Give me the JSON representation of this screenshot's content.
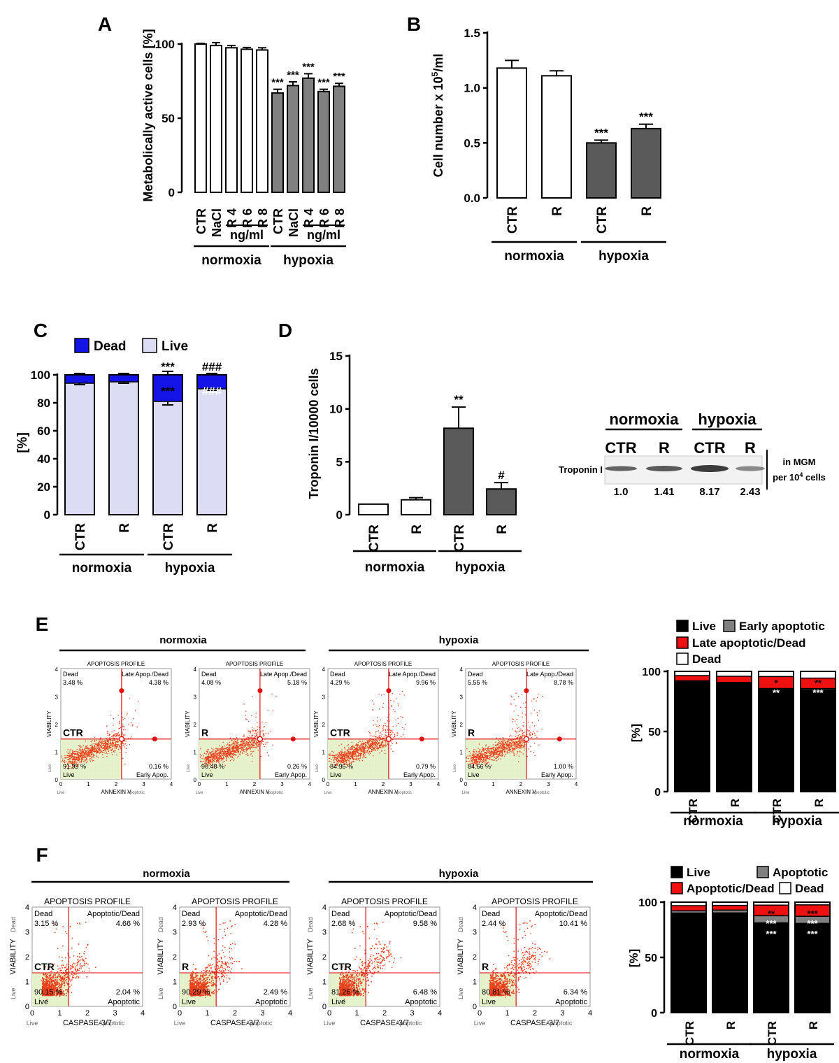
{
  "panel_letters": [
    "A",
    "B",
    "C",
    "D",
    "E",
    "F"
  ],
  "chart_data": [
    {
      "id": "A",
      "type": "bar",
      "ylabel": "Metabolically active cells [%]",
      "ylim": [
        0,
        100
      ],
      "yticks": [
        "0",
        "50",
        "100"
      ],
      "categories": [
        "CTR",
        "NaCl",
        "R 4",
        "R 6",
        "R 8",
        "CTR",
        "NaCl",
        "R 4",
        "R 6",
        "R 8"
      ],
      "values": [
        100,
        99,
        97.5,
        96.5,
        96,
        67,
        72,
        77,
        68,
        71.5
      ],
      "errors": [
        0.5,
        2,
        1.5,
        1.2,
        1.5,
        2.5,
        2.5,
        3,
        1.5,
        2
      ],
      "fill": [
        "#ffffff",
        "#ffffff",
        "#ffffff",
        "#ffffff",
        "#ffffff",
        "#808080",
        "#808080",
        "#808080",
        "#808080",
        "#808080"
      ],
      "annotations": [
        "",
        "",
        "",
        "",
        "",
        "***",
        "***",
        "***",
        "***",
        "***"
      ],
      "sublabels": [
        {
          "text": "ng/ml",
          "from": 2,
          "to": 4
        },
        {
          "text": "ng/ml",
          "from": 7,
          "to": 9
        }
      ],
      "groups": [
        {
          "text": "normoxia",
          "from": 0,
          "to": 4
        },
        {
          "text": "hypoxia",
          "from": 5,
          "to": 9
        }
      ]
    },
    {
      "id": "B",
      "type": "bar",
      "ylabel": "Cell number x 10",
      "ylabel_sup": "5",
      "ylabel_suffix": "/ml",
      "ylim": [
        0,
        1.5
      ],
      "yticks": [
        "0.0",
        "0.5",
        "1.0",
        "1.5"
      ],
      "categories": [
        "CTR",
        "R",
        "CTR",
        "R"
      ],
      "values": [
        1.18,
        1.11,
        0.5,
        0.63
      ],
      "errors": [
        0.07,
        0.045,
        0.025,
        0.04
      ],
      "fill": [
        "#ffffff",
        "#ffffff",
        "#5a5a5a",
        "#5a5a5a"
      ],
      "annotations": [
        "",
        "",
        "***",
        "***"
      ],
      "groups": [
        {
          "text": "normoxia",
          "from": 0,
          "to": 1
        },
        {
          "text": "hypoxia",
          "from": 2,
          "to": 3
        }
      ]
    },
    {
      "id": "C",
      "type": "bar",
      "stacked": true,
      "ylabel": "[%]",
      "ylim": [
        0,
        100
      ],
      "yticks": [
        "0",
        "20",
        "40",
        "60",
        "80",
        "100"
      ],
      "categories": [
        "CTR",
        "R",
        "CTR",
        "R"
      ],
      "series": [
        {
          "name": "Live",
          "color": "#dcdcf5",
          "values": [
            94,
            95,
            81,
            90
          ]
        },
        {
          "name": "Dead",
          "color": "#1414e6",
          "values": [
            6,
            5,
            19,
            10
          ]
        }
      ],
      "errors": [
        1,
        1,
        2.5,
        1
      ],
      "annotations_top": [
        "",
        "",
        "***",
        "###"
      ],
      "annotations_inner": [
        "",
        "",
        "***",
        "###"
      ],
      "groups": [
        {
          "text": "normoxia",
          "from": 0,
          "to": 1
        },
        {
          "text": "hypoxia",
          "from": 2,
          "to": 3
        }
      ]
    },
    {
      "id": "D",
      "type": "bar",
      "ylabel": "Troponin I/10000 cells",
      "ylim": [
        0,
        15
      ],
      "yticks": [
        "0",
        "5",
        "10",
        "15"
      ],
      "categories": [
        "CTR",
        "R",
        "CTR",
        "R"
      ],
      "values": [
        1.0,
        1.41,
        8.17,
        2.43
      ],
      "errors": [
        0,
        0.2,
        2.0,
        0.6
      ],
      "fill": [
        "#ffffff",
        "#ffffff",
        "#5a5a5a",
        "#5a5a5a"
      ],
      "annotations": [
        "",
        "",
        "**",
        "#"
      ],
      "groups": [
        {
          "text": "normoxia",
          "from": 0,
          "to": 1
        },
        {
          "text": "hypoxia",
          "from": 2,
          "to": 3
        }
      ]
    },
    {
      "id": "E",
      "type": "bar",
      "stacked": true,
      "ylabel": "[%]",
      "ylim": [
        0,
        100
      ],
      "yticks": [
        "0",
        "50",
        "100"
      ],
      "categories": [
        "CTR",
        "R",
        "CTR",
        "R"
      ],
      "series": [
        {
          "name": "Live",
          "color": "#000000",
          "values": [
            91.99,
            90.48,
            84.96,
            84.66
          ]
        },
        {
          "name": "Early apoptotic",
          "color": "#808080",
          "values": [
            0.16,
            0.26,
            0.79,
            1.0
          ]
        },
        {
          "name": "Late apoptotic/Dead",
          "color": "#ee1111",
          "values": [
            4.38,
            5.18,
            9.96,
            8.78
          ]
        },
        {
          "name": "Dead",
          "color": "#ffffff",
          "values": [
            3.48,
            4.08,
            4.29,
            5.55
          ]
        }
      ],
      "annotations_red": [
        "",
        "",
        "*",
        "**"
      ],
      "annotations_black": [
        "",
        "",
        "**",
        "***"
      ],
      "groups": [
        {
          "text": "normoxia",
          "from": 0,
          "to": 1
        },
        {
          "text": "hypoxia",
          "from": 2,
          "to": 3
        }
      ]
    },
    {
      "id": "F",
      "type": "bar",
      "stacked": true,
      "ylabel": "[%]",
      "ylim": [
        0,
        100
      ],
      "yticks": [
        "0",
        "50",
        "100"
      ],
      "categories": [
        "CTR",
        "R",
        "CTR",
        "R"
      ],
      "series": [
        {
          "name": "Live",
          "color": "#000000",
          "values": [
            90.15,
            90.29,
            81.26,
            80.81
          ]
        },
        {
          "name": "Apoptotic",
          "color": "#808080",
          "values": [
            2.04,
            2.49,
            6.48,
            6.34
          ]
        },
        {
          "name": "Apoptotic/Dead",
          "color": "#ee1111",
          "values": [
            4.66,
            4.28,
            9.58,
            10.41
          ]
        },
        {
          "name": "Dead",
          "color": "#ffffff",
          "values": [
            3.15,
            2.93,
            2.68,
            2.44
          ]
        }
      ],
      "annotations_red": [
        "",
        "",
        "**",
        "***"
      ],
      "annotations_gray": [
        "",
        "",
        "***",
        "***"
      ],
      "annotations_black": [
        "",
        "",
        "***",
        "***"
      ],
      "groups": [
        {
          "text": "normoxia",
          "from": 0,
          "to": 1
        },
        {
          "text": "hypoxia",
          "from": 2,
          "to": 3
        }
      ]
    }
  ],
  "western_blot": {
    "groups": [
      "normoxia",
      "hypoxia"
    ],
    "lanes": [
      "CTR",
      "R",
      "CTR",
      "R"
    ],
    "row_label": "Troponin I",
    "values": [
      "1.0",
      "1.41",
      "8.17",
      "2.43"
    ],
    "side_label_1": "in MGM",
    "side_label_2": "per 10",
    "side_label_2_sup": "4",
    "side_label_2_suffix": " cells"
  },
  "flow_E": {
    "groups": [
      "normoxia",
      "hypoxia"
    ],
    "title": "APOPTOSIS PROFILE",
    "yaxis": "VIABILITY",
    "xaxis": "ANNEXIN V",
    "x_left_word": "Live",
    "x_right_word": "Apoptotic",
    "y_bottom_word": "Live",
    "q_ul": "Dead",
    "q_ur": "Late Apop./Dead",
    "q_ll": "Live",
    "q_lr": "Early Apop.",
    "ticks": [
      "0",
      "1",
      "2",
      "3",
      "4"
    ],
    "plots": [
      {
        "label": "CTR",
        "dead": "3.48 %",
        "late": "4.38 %",
        "live": "91.99 %",
        "early": "0.16 %"
      },
      {
        "label": "R",
        "dead": "4.08 %",
        "late": "5.18 %",
        "live": "90.48 %",
        "early": "0.26 %"
      },
      {
        "label": "CTR",
        "dead": "4.29 %",
        "late": "9.96 %",
        "live": "84.96 %",
        "early": "0.79 %"
      },
      {
        "label": "R",
        "dead": "5.55 %",
        "late": "8.78 %",
        "live": "84.66 %",
        "early": "1.00 %"
      }
    ]
  },
  "flow_F": {
    "groups": [
      "normoxia",
      "hypoxia"
    ],
    "title": "APOPTOSIS PROFILE",
    "yaxis": "VIABILITY",
    "xaxis": "CASPASE-3/7",
    "x_left_word": "Live",
    "x_right_word": "Apoptotic",
    "y_bottom_word": "Live",
    "y_top_word": "Dead",
    "q_ul": "Dead",
    "q_ur": "Apoptotic/Dead",
    "q_ll": "Live",
    "q_lr": "Apoptotic",
    "ticks": [
      "0",
      "1",
      "2",
      "3",
      "4"
    ],
    "plots": [
      {
        "label": "CTR",
        "dead": "3.15 %",
        "late": "4.66 %",
        "live": "90.15 %",
        "early": "2.04 %"
      },
      {
        "label": "R",
        "dead": "2.93 %",
        "late": "4.28 %",
        "live": "90.29 %",
        "early": "2.49 %"
      },
      {
        "label": "CTR",
        "dead": "2.68 %",
        "late": "9.58 %",
        "live": "81.26 %",
        "early": "6.48 %"
      },
      {
        "label": "R",
        "dead": "2.44 %",
        "late": "10.41 %",
        "live": "80.81 %",
        "early": "6.34 %"
      }
    ]
  }
}
